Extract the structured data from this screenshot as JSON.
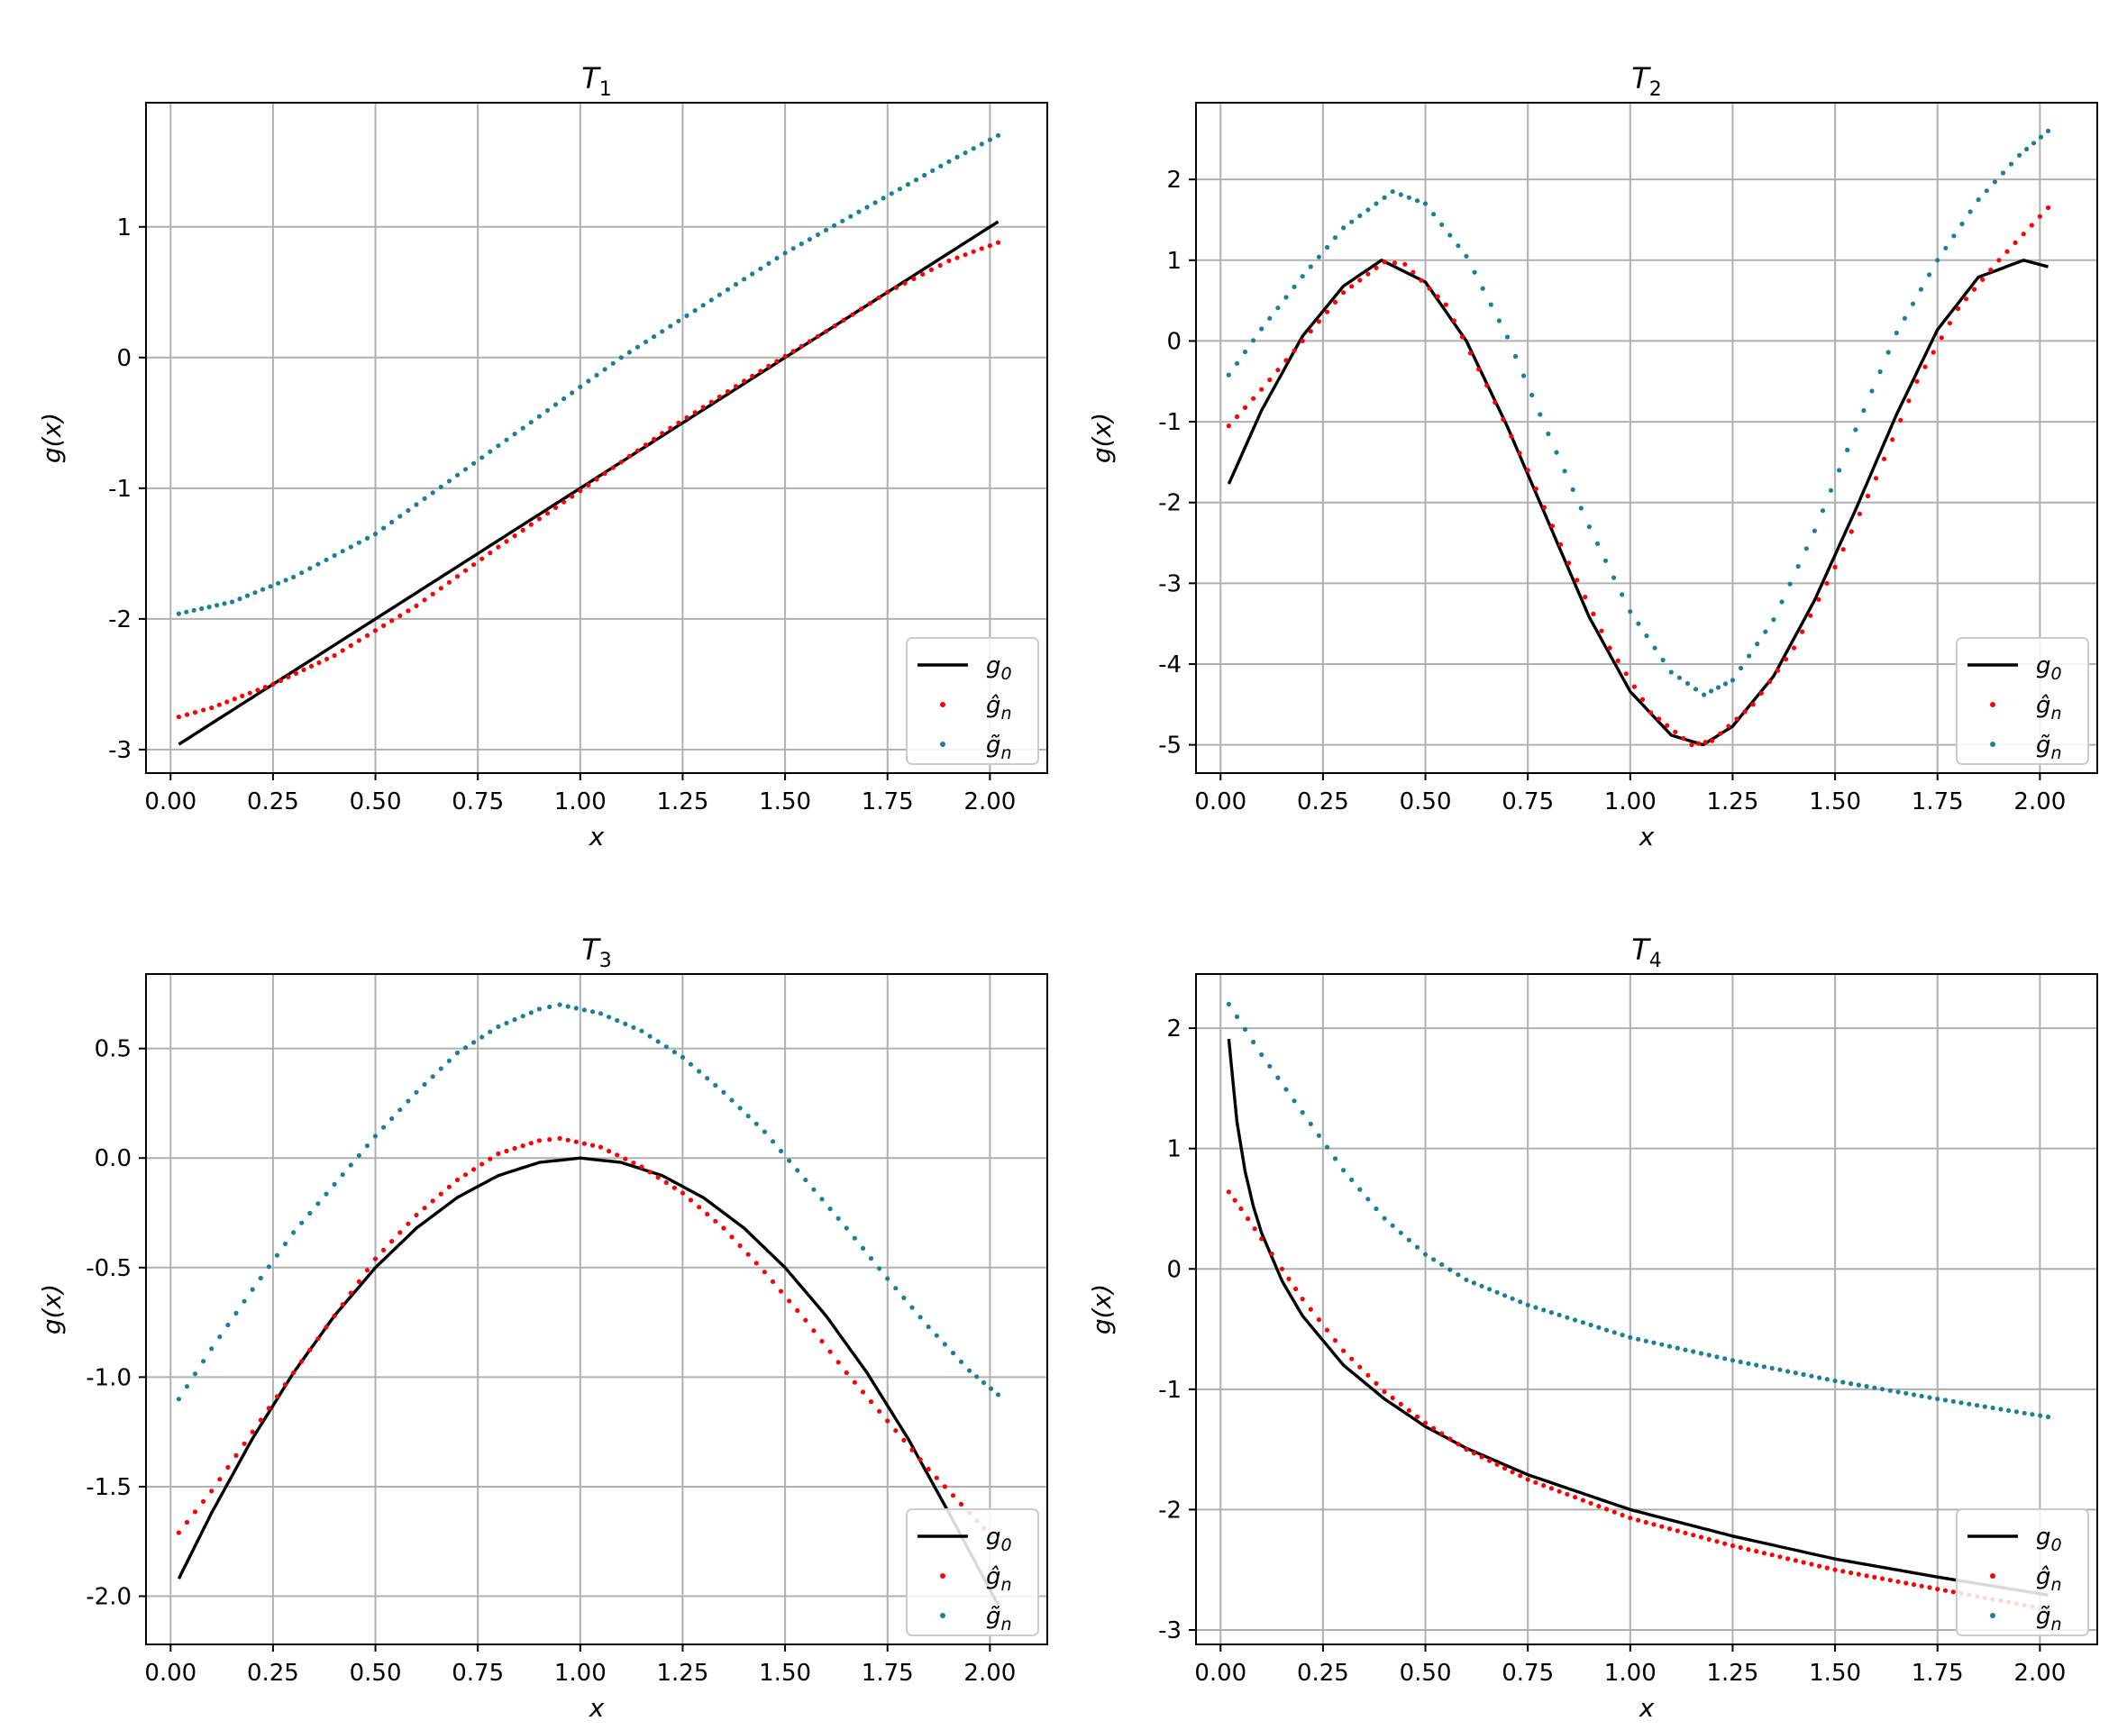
{
  "colors": {
    "g0": "#000000",
    "ghat": "#ff0000",
    "gtilde": "#1a7f9a",
    "grid": "#b0b0b0"
  },
  "legend": {
    "g0": "g0",
    "ghat": "ĝn",
    "gtilde": "g̃n"
  },
  "chart_data": [
    {
      "type": "line",
      "title": "T1",
      "xlabel": "x",
      "ylabel": "g(x)",
      "xlim": [
        -0.06,
        2.14
      ],
      "ylim": [
        -3.18,
        1.95
      ],
      "xticks": [
        0.0,
        0.25,
        0.5,
        0.75,
        1.0,
        1.25,
        1.5,
        1.75,
        2.0
      ],
      "xtick_labels": [
        "0.00",
        "0.25",
        "0.50",
        "0.75",
        "1.00",
        "1.25",
        "1.50",
        "1.75",
        "2.00"
      ],
      "yticks": [
        1,
        0,
        -1,
        -2,
        -3
      ],
      "ytick_labels": [
        "1",
        "0",
        "-1",
        "-2",
        "-3"
      ],
      "grid": true,
      "legend_position": "lower-right",
      "series": [
        {
          "name": "g0",
          "style": "line",
          "x": [
            0.02,
            2.02
          ],
          "y": [
            -2.96,
            1.04
          ]
        },
        {
          "name": "ĝn",
          "style": "dots",
          "x": [
            0.02,
            0.1,
            0.25,
            0.4,
            0.6,
            0.8,
            1.0,
            1.2,
            1.4,
            1.6,
            1.75,
            1.9,
            2.02
          ],
          "y": [
            -2.75,
            -2.68,
            -2.5,
            -2.28,
            -1.9,
            -1.45,
            -1.02,
            -0.58,
            -0.18,
            0.2,
            0.5,
            0.74,
            0.88
          ]
        },
        {
          "name": "g̃n",
          "style": "dots",
          "x": [
            0.02,
            0.15,
            0.3,
            0.5,
            0.7,
            0.9,
            1.1,
            1.3,
            1.5,
            1.7,
            1.9,
            2.02
          ],
          "y": [
            -1.96,
            -1.87,
            -1.68,
            -1.35,
            -0.9,
            -0.45,
            0.0,
            0.4,
            0.8,
            1.15,
            1.5,
            1.7
          ]
        }
      ]
    },
    {
      "type": "line",
      "title": "T2",
      "xlabel": "x",
      "ylabel": "g(x)",
      "xlim": [
        -0.06,
        2.14
      ],
      "ylim": [
        -5.35,
        2.95
      ],
      "xticks": [
        0.0,
        0.25,
        0.5,
        0.75,
        1.0,
        1.25,
        1.5,
        1.75,
        2.0
      ],
      "xtick_labels": [
        "0.00",
        "0.25",
        "0.50",
        "0.75",
        "1.00",
        "1.25",
        "1.50",
        "1.75",
        "2.00"
      ],
      "yticks": [
        2,
        1,
        0,
        -1,
        -2,
        -3,
        -4,
        -5
      ],
      "ytick_labels": [
        "2",
        "1",
        "0",
        "-1",
        "-2",
        "-3",
        "-4",
        "-5"
      ],
      "grid": true,
      "legend_position": "lower-right",
      "series": [
        {
          "name": "g0",
          "style": "line",
          "x": [
            0.02,
            0.1,
            0.2,
            0.3,
            0.393,
            0.5,
            0.6,
            0.7,
            0.8,
            0.9,
            1.0,
            1.1,
            1.178,
            1.25,
            1.35,
            1.45,
            1.55,
            1.65,
            1.75,
            1.85,
            1.96,
            2.02
          ],
          "y": [
            -1.77,
            -0.86,
            0.06,
            0.68,
            1.0,
            0.73,
            0.0,
            -1.06,
            -2.24,
            -3.42,
            -4.34,
            -4.88,
            -5.0,
            -4.77,
            -4.15,
            -3.21,
            -2.09,
            -0.91,
            0.14,
            0.79,
            1.0,
            0.92
          ]
        },
        {
          "name": "ĝn",
          "style": "dots",
          "x": [
            0.02,
            0.1,
            0.2,
            0.3,
            0.4,
            0.45,
            0.55,
            0.65,
            0.75,
            0.85,
            0.95,
            1.05,
            1.15,
            1.2,
            1.3,
            1.4,
            1.5,
            1.6,
            1.7,
            1.8,
            1.9,
            2.02
          ],
          "y": [
            -1.05,
            -0.6,
            0.0,
            0.6,
            0.98,
            0.95,
            0.45,
            -0.55,
            -1.6,
            -2.75,
            -3.8,
            -4.6,
            -5.0,
            -4.95,
            -4.5,
            -3.8,
            -2.8,
            -1.7,
            -0.5,
            0.4,
            1.0,
            1.65
          ]
        },
        {
          "name": "g̃n",
          "style": "dots",
          "x": [
            0.02,
            0.1,
            0.2,
            0.3,
            0.42,
            0.5,
            0.6,
            0.7,
            0.8,
            0.9,
            1.0,
            1.1,
            1.18,
            1.25,
            1.35,
            1.45,
            1.55,
            1.65,
            1.75,
            1.85,
            1.95,
            2.02
          ],
          "y": [
            -0.42,
            0.15,
            0.8,
            1.4,
            1.85,
            1.7,
            1.05,
            0.05,
            -1.15,
            -2.3,
            -3.35,
            -4.1,
            -4.38,
            -4.2,
            -3.45,
            -2.35,
            -1.1,
            0.1,
            1.0,
            1.75,
            2.3,
            2.6
          ]
        }
      ]
    },
    {
      "type": "line",
      "title": "T3",
      "xlabel": "x",
      "ylabel": "g(x)",
      "xlim": [
        -0.06,
        2.14
      ],
      "ylim": [
        -2.22,
        0.84
      ],
      "xticks": [
        0.0,
        0.25,
        0.5,
        0.75,
        1.0,
        1.25,
        1.5,
        1.75,
        2.0
      ],
      "xtick_labels": [
        "0.00",
        "0.25",
        "0.50",
        "0.75",
        "1.00",
        "1.25",
        "1.50",
        "1.75",
        "2.00"
      ],
      "yticks": [
        0.5,
        0.0,
        -0.5,
        -1.0,
        -1.5,
        -2.0
      ],
      "ytick_labels": [
        "0.5",
        "0.0",
        "-0.5",
        "-1.0",
        "-1.5",
        "-2.0"
      ],
      "grid": true,
      "legend_position": "lower-right",
      "series": [
        {
          "name": "g0",
          "style": "line",
          "x": [
            0.02,
            0.1,
            0.2,
            0.3,
            0.4,
            0.5,
            0.6,
            0.7,
            0.8,
            0.9,
            1.0,
            1.1,
            1.2,
            1.3,
            1.4,
            1.5,
            1.6,
            1.7,
            1.8,
            1.9,
            2.02
          ],
          "y": [
            -1.92,
            -1.62,
            -1.28,
            -0.98,
            -0.72,
            -0.5,
            -0.32,
            -0.18,
            -0.08,
            -0.02,
            0.0,
            -0.02,
            -0.08,
            -0.18,
            -0.32,
            -0.5,
            -0.72,
            -0.98,
            -1.28,
            -1.62,
            -2.04
          ]
        },
        {
          "name": "ĝn",
          "style": "dots",
          "x": [
            0.02,
            0.1,
            0.2,
            0.3,
            0.4,
            0.5,
            0.6,
            0.7,
            0.8,
            0.9,
            0.95,
            1.05,
            1.15,
            1.25,
            1.35,
            1.45,
            1.55,
            1.65,
            1.75,
            1.85,
            1.95,
            2.02
          ],
          "y": [
            -1.71,
            -1.52,
            -1.25,
            -0.98,
            -0.72,
            -0.46,
            -0.26,
            -0.1,
            0.02,
            0.08,
            0.09,
            0.05,
            -0.04,
            -0.16,
            -0.32,
            -0.52,
            -0.74,
            -0.98,
            -1.2,
            -1.42,
            -1.62,
            -1.76
          ]
        },
        {
          "name": "g̃n",
          "style": "dots",
          "x": [
            0.02,
            0.1,
            0.2,
            0.3,
            0.4,
            0.5,
            0.6,
            0.7,
            0.8,
            0.9,
            0.95,
            1.05,
            1.15,
            1.25,
            1.35,
            1.45,
            1.55,
            1.65,
            1.75,
            1.85,
            1.95,
            2.02
          ],
          "y": [
            -1.1,
            -0.87,
            -0.6,
            -0.34,
            -0.12,
            0.1,
            0.3,
            0.48,
            0.6,
            0.68,
            0.7,
            0.66,
            0.58,
            0.46,
            0.3,
            0.12,
            -0.1,
            -0.32,
            -0.55,
            -0.77,
            -0.97,
            -1.08
          ]
        }
      ]
    },
    {
      "type": "line",
      "title": "T4",
      "xlabel": "x",
      "ylabel": "g(x)",
      "xlim": [
        -0.06,
        2.14
      ],
      "ylim": [
        -3.12,
        2.45
      ],
      "xticks": [
        0.0,
        0.25,
        0.5,
        0.75,
        1.0,
        1.25,
        1.5,
        1.75,
        2.0
      ],
      "xtick_labels": [
        "0.00",
        "0.25",
        "0.50",
        "0.75",
        "1.00",
        "1.25",
        "1.50",
        "1.75",
        "2.00"
      ],
      "yticks": [
        2,
        1,
        0,
        -1,
        -2,
        -3
      ],
      "ytick_labels": [
        "2",
        "1",
        "0",
        "-1",
        "-2",
        "-3"
      ],
      "grid": true,
      "legend_position": "lower-right",
      "series": [
        {
          "name": "g0",
          "style": "line",
          "x": [
            0.02,
            0.04,
            0.06,
            0.08,
            0.1,
            0.15,
            0.2,
            0.3,
            0.4,
            0.5,
            0.6,
            0.75,
            1.0,
            1.25,
            1.5,
            1.75,
            2.02
          ],
          "y": [
            1.91,
            1.22,
            0.81,
            0.52,
            0.3,
            -0.1,
            -0.39,
            -0.8,
            -1.08,
            -1.31,
            -1.49,
            -1.71,
            -2.0,
            -2.22,
            -2.41,
            -2.56,
            -2.71
          ]
        },
        {
          "name": "ĝn",
          "style": "dots",
          "x": [
            0.02,
            0.05,
            0.1,
            0.15,
            0.2,
            0.3,
            0.4,
            0.5,
            0.6,
            0.75,
            1.0,
            1.25,
            1.5,
            1.75,
            2.02
          ],
          "y": [
            0.64,
            0.5,
            0.25,
            0.0,
            -0.25,
            -0.68,
            -1.02,
            -1.28,
            -1.5,
            -1.75,
            -2.07,
            -2.3,
            -2.5,
            -2.66,
            -2.83
          ]
        },
        {
          "name": "g̃n",
          "style": "dots",
          "x": [
            0.02,
            0.1,
            0.2,
            0.3,
            0.4,
            0.5,
            0.6,
            0.75,
            1.0,
            1.25,
            1.5,
            1.75,
            2.02
          ],
          "y": [
            2.2,
            1.78,
            1.3,
            0.82,
            0.42,
            0.12,
            -0.09,
            -0.3,
            -0.57,
            -0.76,
            -0.93,
            -1.08,
            -1.23
          ]
        }
      ]
    }
  ]
}
